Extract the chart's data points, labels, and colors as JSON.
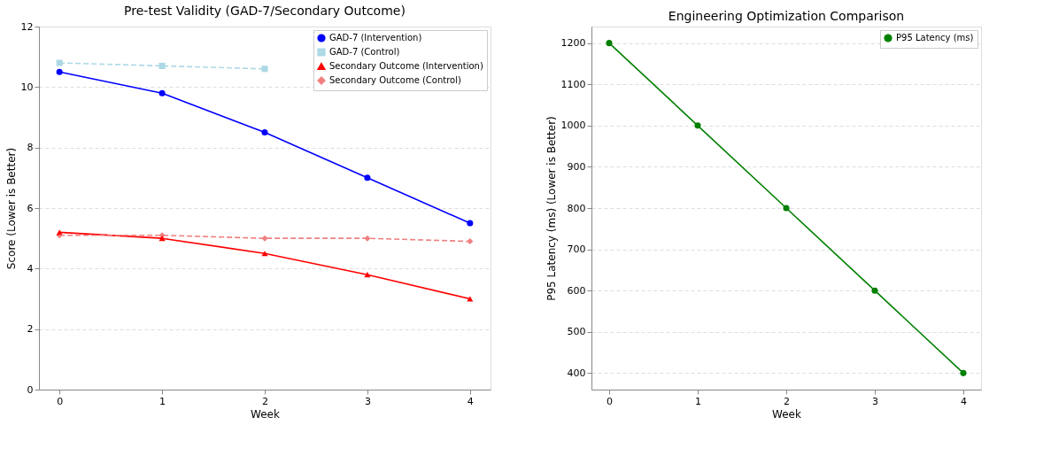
{
  "chart_data": [
    {
      "type": "line",
      "title": "Pre-test Validity (GAD-7/Secondary Outcome)",
      "xlabel": "Week",
      "ylabel": "Score (Lower is Better)",
      "x": [
        0,
        1,
        2,
        3,
        4
      ],
      "xlim": [
        -0.2,
        4.2
      ],
      "xticks": [
        0,
        1,
        2,
        3,
        4
      ],
      "ylim": [
        0,
        12
      ],
      "yticks": [
        0,
        2,
        4,
        6,
        8,
        10,
        12
      ],
      "grid": "y",
      "legend": "top right",
      "series": [
        {
          "name": "GAD-7 (Intervention)",
          "color": "#0000ff",
          "marker": "circle",
          "line_style": "solid",
          "values": [
            10.5,
            9.8,
            8.5,
            7.0,
            5.5
          ]
        },
        {
          "name": "GAD-7 (Control)",
          "color": "#add8e6",
          "marker": "square",
          "line_style": "dashed",
          "values": [
            10.8,
            10.7,
            10.6,
            null,
            null
          ]
        },
        {
          "name": "Secondary Outcome (Intervention)",
          "color": "#ff0000",
          "marker": "triangle",
          "line_style": "solid",
          "values": [
            5.2,
            5.0,
            4.5,
            3.8,
            3.0
          ]
        },
        {
          "name": "Secondary Outcome (Control)",
          "color": "#f08080",
          "marker": "diamond",
          "line_style": "dashed",
          "values": [
            5.1,
            5.1,
            5.0,
            5.0,
            4.9
          ]
        }
      ]
    },
    {
      "type": "line",
      "title": "Engineering Optimization Comparison",
      "xlabel": "Week",
      "ylabel": "P95 Latency (ms) (Lower is Better)",
      "x": [
        0,
        1,
        2,
        3,
        4
      ],
      "xlim": [
        -0.2,
        4.2
      ],
      "xticks": [
        0,
        1,
        2,
        3,
        4
      ],
      "ylim": [
        360,
        1240
      ],
      "yticks": [
        400,
        500,
        600,
        700,
        800,
        900,
        1000,
        1100,
        1200
      ],
      "grid": "y",
      "legend": "top right",
      "series": [
        {
          "name": "P95 Latency (ms)",
          "color": "#008000",
          "marker": "circle",
          "line_style": "solid",
          "values": [
            1200,
            1000,
            800,
            600,
            400
          ]
        }
      ]
    }
  ]
}
